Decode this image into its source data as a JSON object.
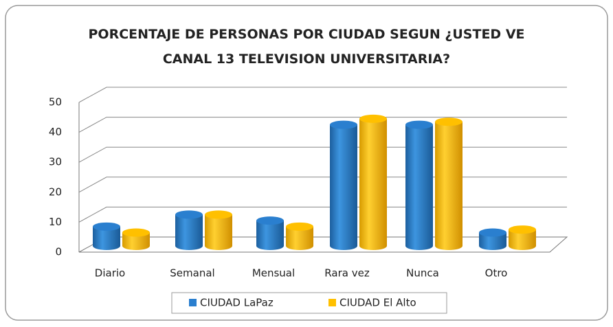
{
  "chart_data": {
    "type": "bar3d",
    "title": "PORCENTAJE DE PERSONAS POR CIUDAD SEGUN ¿USTED VE CANAL 13 TELEVISION UNIVERSITARIA?",
    "categories": [
      "Diario",
      "Semanal",
      "Mensual",
      "Rara vez",
      "Nunca",
      "Otro"
    ],
    "series": [
      {
        "name": "CIUDAD LaPaz",
        "color": "#2a7fcf",
        "values": [
          6,
          10,
          8,
          40,
          40,
          4
        ]
      },
      {
        "name": "CIUDAD El Alto",
        "color": "#ffc000",
        "values": [
          4,
          10,
          6,
          42,
          41,
          5
        ]
      }
    ],
    "ylim": [
      0,
      50
    ],
    "yticks": [
      0,
      10,
      20,
      30,
      40,
      50
    ],
    "grid": true,
    "legend": "bottom"
  }
}
